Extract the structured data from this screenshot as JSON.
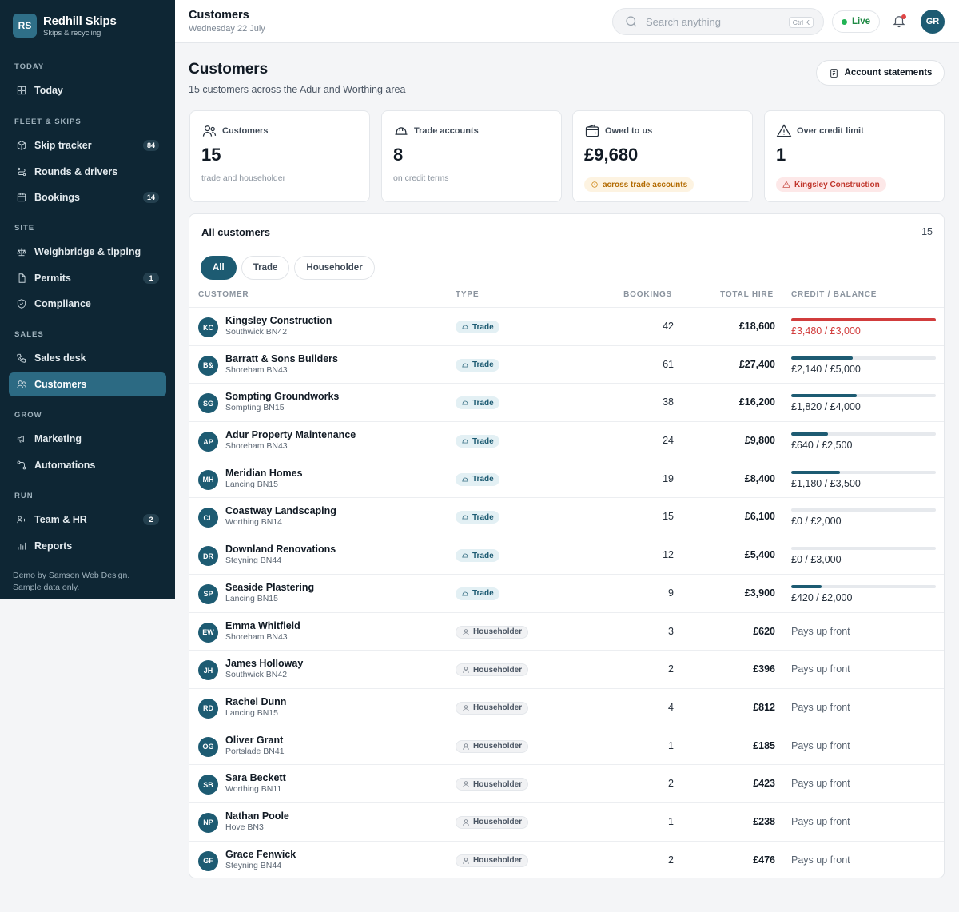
{
  "brand": {
    "initials": "RS",
    "name": "Redhill Skips",
    "tagline": "Skips & recycling"
  },
  "nav": {
    "sections": [
      {
        "label": "TODAY",
        "items": [
          {
            "label": "Today",
            "icon": "grid-icon",
            "badge": null
          }
        ]
      },
      {
        "label": "FLEET & SKIPS",
        "items": [
          {
            "label": "Skip tracker",
            "icon": "box-icon",
            "badge": "84"
          },
          {
            "label": "Rounds & drivers",
            "icon": "route-icon",
            "badge": null
          },
          {
            "label": "Bookings",
            "icon": "calendar-icon",
            "badge": "14"
          }
        ]
      },
      {
        "label": "SITE",
        "items": [
          {
            "label": "Weighbridge & tipping",
            "icon": "scale-icon",
            "badge": null
          },
          {
            "label": "Permits",
            "icon": "document-icon",
            "badge": "1"
          },
          {
            "label": "Compliance",
            "icon": "shield-icon",
            "badge": null
          }
        ]
      },
      {
        "label": "SALES",
        "items": [
          {
            "label": "Sales desk",
            "icon": "phone-icon",
            "badge": null
          },
          {
            "label": "Customers",
            "icon": "users-icon",
            "badge": null,
            "active": true
          }
        ]
      },
      {
        "label": "GROW",
        "items": [
          {
            "label": "Marketing",
            "icon": "megaphone-icon",
            "badge": null
          },
          {
            "label": "Automations",
            "icon": "flow-icon",
            "badge": null
          }
        ]
      },
      {
        "label": "RUN",
        "items": [
          {
            "label": "Team & HR",
            "icon": "user-group-icon",
            "badge": "2"
          },
          {
            "label": "Reports",
            "icon": "bar-chart-icon",
            "badge": null
          }
        ]
      }
    ],
    "footer_line1": "Demo by Samson Web Design.",
    "footer_line2": "Sample data only."
  },
  "topbar": {
    "title": "Customers",
    "date": "Wednesday 22 July",
    "search_placeholder": "Search anything",
    "search_shortcut": "Ctrl K",
    "live_label": "Live",
    "user_initials": "GR"
  },
  "page": {
    "title": "Customers",
    "subtitle": "15 customers across the Adur and Worthing area",
    "statements_button": "Account statements"
  },
  "stats": [
    {
      "label": "Customers",
      "value": "15",
      "note": "trade and householder",
      "icon": "users-icon"
    },
    {
      "label": "Trade accounts",
      "value": "8",
      "note": "on credit terms",
      "icon": "hard-hat-icon"
    },
    {
      "label": "Owed to us",
      "value": "£9,680",
      "chip": "across trade accounts",
      "chip_tone": "amber",
      "icon": "wallet-icon"
    },
    {
      "label": "Over credit limit",
      "value": "1",
      "chip": "Kingsley Construction",
      "chip_tone": "red",
      "icon": "warning-icon"
    }
  ],
  "table": {
    "title": "All customers",
    "count": "15",
    "filters": [
      "All",
      "Trade",
      "Householder"
    ],
    "active_filter": "All",
    "columns": {
      "customer": "CUSTOMER",
      "type": "TYPE",
      "bookings": "BOOKINGS",
      "total_hire": "TOTAL HIRE",
      "credit": "CREDIT / BALANCE"
    },
    "pays_up_front_label": "Pays up front",
    "rows": [
      {
        "initials": "KC",
        "name": "Kingsley Construction",
        "location": "Southwick BN42",
        "type": "Trade",
        "bookings": "42",
        "hire": "£18,600",
        "credit": "£3,480 / £3,000",
        "credit_fraction": 1.0,
        "over": true
      },
      {
        "initials": "B&",
        "name": "Barratt & Sons Builders",
        "location": "Shoreham BN43",
        "type": "Trade",
        "bookings": "61",
        "hire": "£27,400",
        "credit": "£2,140 / £5,000",
        "credit_fraction": 0.428,
        "over": false
      },
      {
        "initials": "SG",
        "name": "Sompting Groundworks",
        "location": "Sompting BN15",
        "type": "Trade",
        "bookings": "38",
        "hire": "£16,200",
        "credit": "£1,820 / £4,000",
        "credit_fraction": 0.455,
        "over": false
      },
      {
        "initials": "AP",
        "name": "Adur Property Maintenance",
        "location": "Shoreham BN43",
        "type": "Trade",
        "bookings": "24",
        "hire": "£9,800",
        "credit": "£640 / £2,500",
        "credit_fraction": 0.256,
        "over": false
      },
      {
        "initials": "MH",
        "name": "Meridian Homes",
        "location": "Lancing BN15",
        "type": "Trade",
        "bookings": "19",
        "hire": "£8,400",
        "credit": "£1,180 / £3,500",
        "credit_fraction": 0.337,
        "over": false
      },
      {
        "initials": "CL",
        "name": "Coastway Landscaping",
        "location": "Worthing BN14",
        "type": "Trade",
        "bookings": "15",
        "hire": "£6,100",
        "credit": "£0 / £2,000",
        "credit_fraction": 0,
        "over": false
      },
      {
        "initials": "DR",
        "name": "Downland Renovations",
        "location": "Steyning BN44",
        "type": "Trade",
        "bookings": "12",
        "hire": "£5,400",
        "credit": "£0 / £3,000",
        "credit_fraction": 0,
        "over": false
      },
      {
        "initials": "SP",
        "name": "Seaside Plastering",
        "location": "Lancing BN15",
        "type": "Trade",
        "bookings": "9",
        "hire": "£3,900",
        "credit": "£420 / £2,000",
        "credit_fraction": 0.21,
        "over": false
      },
      {
        "initials": "EW",
        "name": "Emma Whitfield",
        "location": "Shoreham BN43",
        "type": "Householder",
        "bookings": "3",
        "hire": "£620"
      },
      {
        "initials": "JH",
        "name": "James Holloway",
        "location": "Southwick BN42",
        "type": "Householder",
        "bookings": "2",
        "hire": "£396"
      },
      {
        "initials": "RD",
        "name": "Rachel Dunn",
        "location": "Lancing BN15",
        "type": "Householder",
        "bookings": "4",
        "hire": "£812"
      },
      {
        "initials": "OG",
        "name": "Oliver Grant",
        "location": "Portslade BN41",
        "type": "Householder",
        "bookings": "1",
        "hire": "£185"
      },
      {
        "initials": "SB",
        "name": "Sara Beckett",
        "location": "Worthing BN11",
        "type": "Householder",
        "bookings": "2",
        "hire": "£423"
      },
      {
        "initials": "NP",
        "name": "Nathan Poole",
        "location": "Hove BN3",
        "type": "Householder",
        "bookings": "1",
        "hire": "£238"
      },
      {
        "initials": "GF",
        "name": "Grace Fenwick",
        "location": "Steyning BN44",
        "type": "Householder",
        "bookings": "2",
        "hire": "£476"
      }
    ]
  }
}
